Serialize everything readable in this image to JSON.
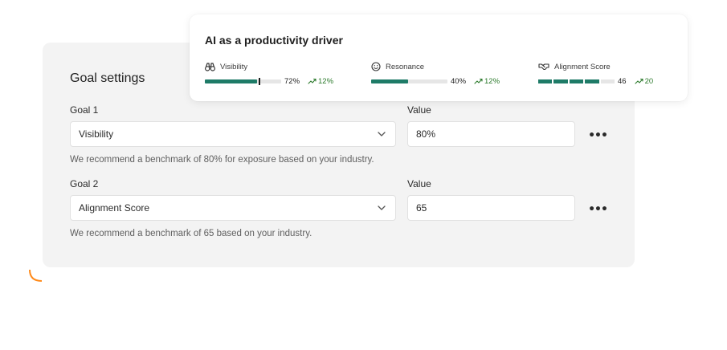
{
  "settings": {
    "title": "Goal settings",
    "goals": [
      {
        "label": "Goal 1",
        "selected": "Visibility",
        "value_label": "Value",
        "value": "80%",
        "hint": "We recommend a benchmark of 80% for exposure based on your industry."
      },
      {
        "label": "Goal 2",
        "selected": "Alignment Score",
        "value_label": "Value",
        "value": "65",
        "hint": "We recommend a benchmark of 65 based on your industry."
      }
    ],
    "more_label": "•••"
  },
  "card": {
    "title": "AI as a productivity driver",
    "metrics": [
      {
        "name": "Visibility",
        "icon": "binoculars-icon",
        "value": "72%",
        "fill": 0.68,
        "marker": 0.72,
        "trend": "12%"
      },
      {
        "name": "Resonance",
        "icon": "smiley-icon",
        "value": "40%",
        "fill": 0.48,
        "trend": "12%"
      },
      {
        "name": "Alignment Score",
        "icon": "handshake-icon",
        "value": "46",
        "segments": 5,
        "segments_filled": 4,
        "trend": "20"
      }
    ]
  },
  "colors": {
    "bar_fill": "#1e7b67",
    "trend": "#2c7a2c",
    "accent_gradient": [
      "#1a8fe0",
      "#9b4fe0",
      "#ff5a8a",
      "#ff8a1a"
    ]
  }
}
